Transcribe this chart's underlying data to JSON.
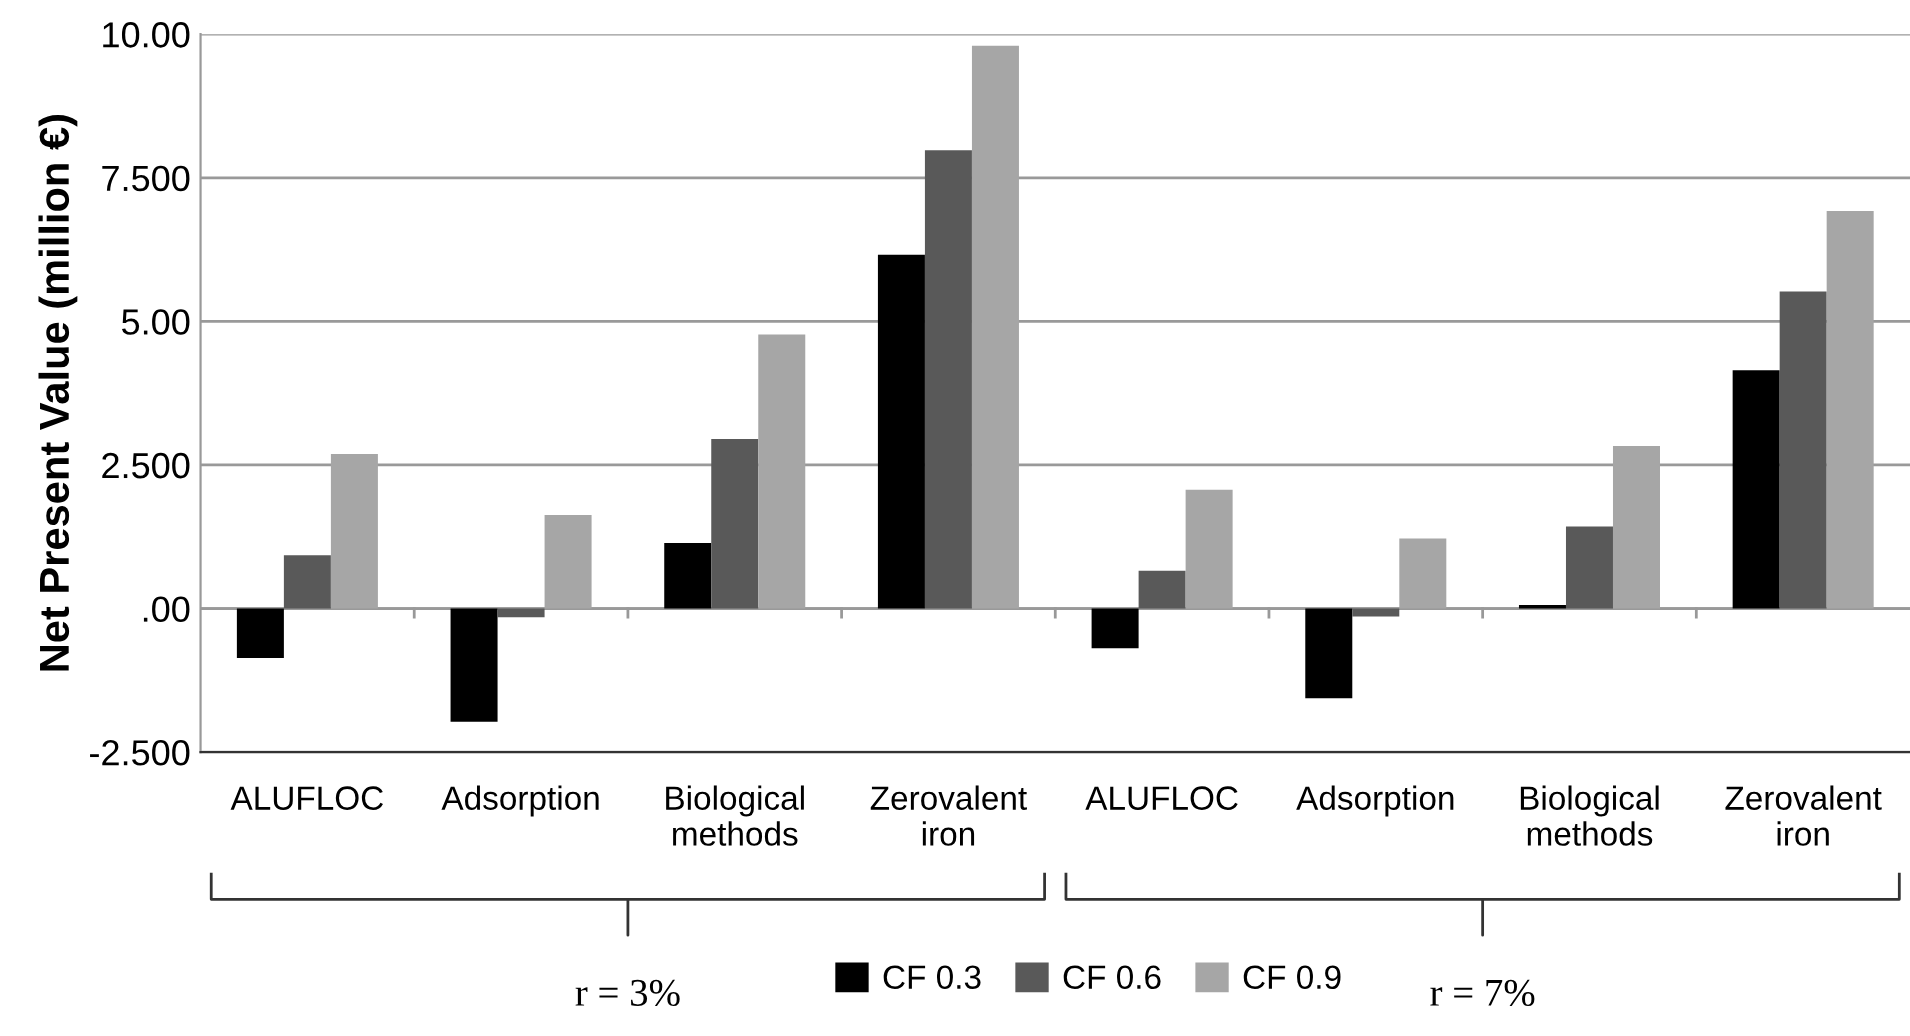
{
  "chart_data": {
    "type": "bar",
    "ylabel": "Net Present Value (million €)",
    "categories": [
      "ALUFLOC",
      "Adsorption",
      "Biological\nmethods",
      "Zerovalent\niron",
      "ALUFLOC",
      "Adsorption",
      "Biological\nmethods",
      "Zerovalent\niron"
    ],
    "series": [
      {
        "name": "CF 0.3",
        "color": "#000000",
        "values": [
          -0.86,
          -1.97,
          1.14,
          6.16,
          -0.69,
          -1.56,
          0.06,
          4.15
        ]
      },
      {
        "name": "CF 0.6",
        "color": "#595959",
        "values": [
          0.93,
          -0.15,
          2.95,
          7.98,
          0.66,
          -0.14,
          1.43,
          5.52
        ]
      },
      {
        "name": "CF 0.9",
        "color": "#a6a6a6",
        "values": [
          2.69,
          1.63,
          4.77,
          9.8,
          2.07,
          1.22,
          2.83,
          6.92
        ]
      }
    ],
    "ylim": [
      -2.5,
      10
    ],
    "yticks": [
      {
        "value": -2.5,
        "label": "-2.500"
      },
      {
        "value": 0,
        "label": ".00"
      },
      {
        "value": 2.5,
        "label": "2.500"
      },
      {
        "value": 5,
        "label": "5.00"
      },
      {
        "value": 7.5,
        "label": "7.500"
      },
      {
        "value": 10,
        "label": "10.00"
      }
    ],
    "grid": "y",
    "legend": "bottom",
    "annotations": [
      "r = 3%",
      "r = 7%"
    ]
  }
}
